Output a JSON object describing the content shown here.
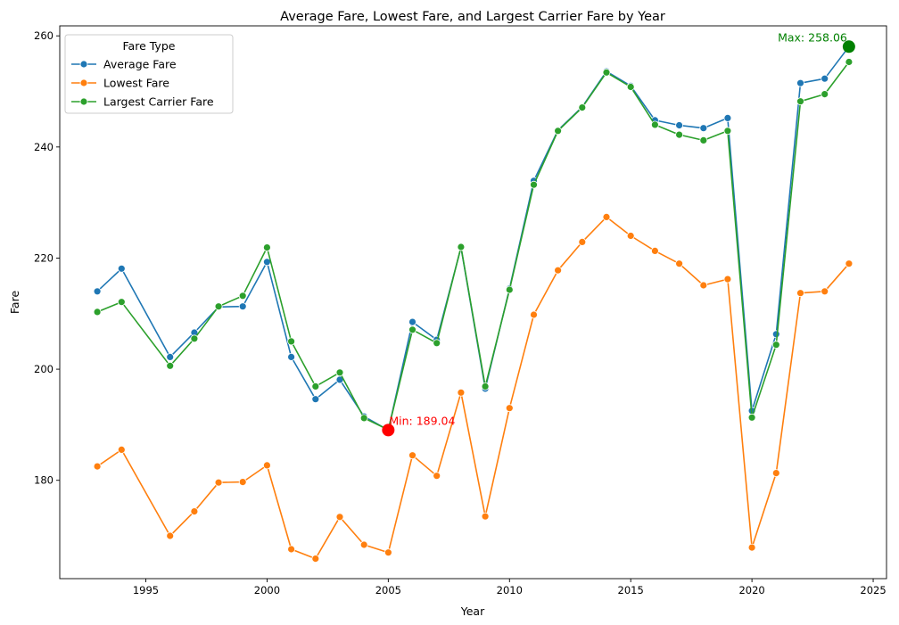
{
  "chart_data": {
    "type": "line",
    "title": "Average Fare, Lowest Fare, and Largest Carrier Fare by Year",
    "xlabel": "Year",
    "ylabel": "Fare",
    "xlim": [
      1991.45,
      2025.55
    ],
    "ylim": [
      162.3,
      261.8
    ],
    "x_ticks": [
      1995,
      2000,
      2005,
      2010,
      2015,
      2020,
      2025
    ],
    "y_ticks": [
      180,
      200,
      220,
      240,
      260
    ],
    "legend": {
      "title": "Fare Type",
      "placement": "top-left"
    },
    "x": [
      1993,
      1994,
      1996,
      1997,
      1998,
      1999,
      2000,
      2001,
      2002,
      2003,
      2004,
      2005,
      2006,
      2007,
      2008,
      2009,
      2010,
      2011,
      2012,
      2013,
      2014,
      2015,
      2016,
      2017,
      2018,
      2019,
      2020,
      2021,
      2022,
      2023,
      2024
    ],
    "series": [
      {
        "name": "Average Fare",
        "color": "#1f77b4",
        "values": [
          214.0,
          218.1,
          202.2,
          206.6,
          211.2,
          211.3,
          219.3,
          202.2,
          194.6,
          198.1,
          191.5,
          189.04,
          208.5,
          205.3,
          221.9,
          196.5,
          214.5,
          233.9,
          243.0,
          247.2,
          253.6,
          251.0,
          244.8,
          243.9,
          243.4,
          245.2,
          192.5,
          206.3,
          251.5,
          252.3,
          258.06
        ]
      },
      {
        "name": "Lowest Fare",
        "color": "#ff7f0e",
        "values": [
          182.5,
          185.5,
          170.0,
          174.4,
          179.6,
          179.7,
          182.7,
          167.6,
          165.9,
          173.4,
          168.4,
          167.0,
          184.5,
          180.8,
          195.8,
          173.5,
          193.0,
          209.8,
          217.8,
          222.9,
          227.4,
          224.0,
          221.3,
          219.0,
          215.1,
          216.2,
          167.9,
          181.3,
          213.7,
          214.0,
          219.0
        ]
      },
      {
        "name": "Largest Carrier Fare",
        "color": "#2ca02c",
        "values": [
          210.3,
          212.1,
          200.6,
          205.5,
          211.3,
          213.2,
          221.9,
          205.0,
          196.9,
          199.4,
          191.2,
          189.1,
          207.1,
          204.7,
          222.0,
          196.9,
          214.3,
          233.2,
          242.9,
          247.1,
          253.4,
          250.8,
          244.0,
          242.2,
          241.2,
          242.9,
          191.3,
          204.4,
          248.2,
          249.5,
          255.3
        ]
      }
    ],
    "annotations": [
      {
        "label": "Min: 189.04",
        "x": 2005,
        "y": 189.04,
        "color": "#ff0000"
      },
      {
        "label": "Max: 258.06",
        "x": 2024,
        "y": 258.06,
        "color": "#008000"
      }
    ]
  }
}
